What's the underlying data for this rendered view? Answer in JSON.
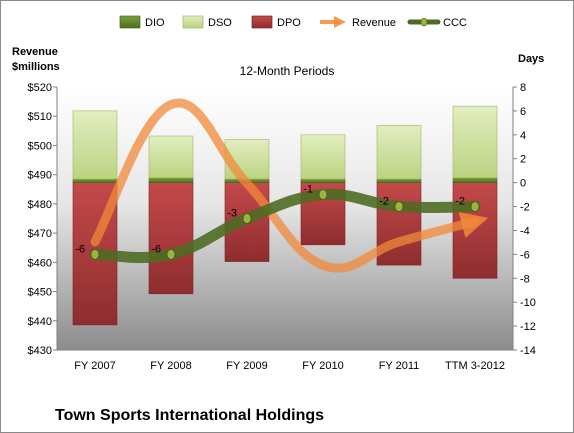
{
  "chart_data": {
    "type": "bar",
    "title": "Town Sports International Holdings",
    "subtitle": "12-Month Periods",
    "y_left_label_line1": "Revenue",
    "y_left_label_line2": "$millions",
    "y_right_label": "Days",
    "categories": [
      "FY 2007",
      "FY 2008",
      "FY 2009",
      "FY 2010",
      "FY 2011",
      "TTM 3-2012"
    ],
    "y_left": {
      "min": 430,
      "max": 520,
      "step": 10,
      "prefix": "$"
    },
    "y_right": {
      "min": -14,
      "max": 8,
      "step": 2
    },
    "series": [
      {
        "name": "DIO",
        "values": [
          0.3,
          0.4,
          0.3,
          0.3,
          0.3,
          0.4
        ]
      },
      {
        "name": "DSO",
        "values": [
          5.7,
          3.5,
          3.3,
          3.7,
          4.5,
          6.0
        ]
      },
      {
        "name": "DPO",
        "values": [
          -11.9,
          -9.3,
          -6.6,
          -5.2,
          -6.9,
          -8.0
        ]
      },
      {
        "name": "Revenue",
        "values": [
          467,
          514,
          487,
          459,
          467,
          474
        ]
      },
      {
        "name": "CCC",
        "values": [
          -6,
          -6,
          -3,
          -1,
          -2,
          -2
        ]
      }
    ],
    "ccc_labels": [
      "-6",
      "-6",
      "-3",
      "-1",
      "-2",
      "-2"
    ],
    "colors": {
      "DIO": "#5a7f2a",
      "DSO": "#cfe09e",
      "DPO": "#a8393b",
      "Revenue": "#f28a3a",
      "CCC": "#4e6b23",
      "CCC_marker": "#9ab53a"
    },
    "legend_position": "top",
    "grid": false
  }
}
